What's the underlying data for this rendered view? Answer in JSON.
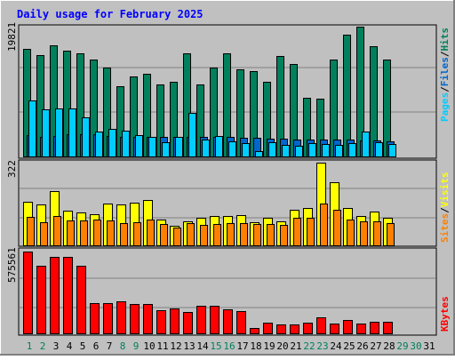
{
  "chart_data": {
    "type": "bar",
    "title": "Daily usage for February 2025",
    "categories": [
      "1",
      "2",
      "3",
      "4",
      "5",
      "6",
      "7",
      "8",
      "9",
      "10",
      "11",
      "12",
      "13",
      "14",
      "15",
      "16",
      "17",
      "18",
      "19",
      "20",
      "21",
      "22",
      "23",
      "24",
      "25",
      "26",
      "27",
      "28",
      "29",
      "30",
      "31"
    ],
    "weekend_days": [
      "1",
      "2",
      "8",
      "9",
      "15",
      "16",
      "22",
      "23",
      "29",
      "30"
    ],
    "panels": [
      {
        "id": "hits_files_pages",
        "ymax_label": "19821",
        "ylim": [
          0,
          19821
        ],
        "grid": true,
        "side_label": [
          {
            "text": "Pages",
            "color": "#00CCFF"
          },
          {
            "text": "/",
            "color": "#000000"
          },
          {
            "text": "Files",
            "color": "#0066CC"
          },
          {
            "text": "/",
            "color": "#000000"
          },
          {
            "text": "Hits",
            "color": "#00805C"
          }
        ],
        "series": [
          {
            "name": "Hits",
            "color": "#00805C",
            "values": [
              16200,
              15300,
              16700,
              15900,
              15600,
              14600,
              13400,
              10600,
              12000,
              12500,
              10900,
              11300,
              15500,
              10800,
              13400,
              15600,
              13100,
              12800,
              11300,
              15100,
              13900,
              8800,
              8700,
              14600,
              18400,
              19500,
              16600,
              14600,
              0,
              0,
              0
            ]
          },
          {
            "name": "Files",
            "color": "#0066CC",
            "values": [
              3200,
              3000,
              3100,
              3300,
              3300,
              3300,
              3100,
              3000,
              3000,
              3000,
              3000,
              3000,
              3000,
              3000,
              2900,
              2900,
              2800,
              2800,
              2700,
              2700,
              2600,
              2600,
              2600,
              2500,
              2500,
              2400,
              2400,
              2300,
              0,
              0,
              0
            ]
          },
          {
            "name": "Pages",
            "color": "#00CCFF",
            "values": [
              8500,
              7100,
              7200,
              7200,
              5900,
              3800,
              4200,
              3900,
              3200,
              2900,
              2100,
              3000,
              6600,
              2600,
              3100,
              2300,
              2000,
              800,
              2100,
              1700,
              1600,
              2000,
              1900,
              1800,
              2000,
              3800,
              2100,
              1900,
              0,
              0,
              0
            ]
          }
        ]
      },
      {
        "id": "visits_sites",
        "ymax_label": "322",
        "ylim": [
          0,
          322
        ],
        "grid": true,
        "side_label": [
          {
            "text": "Sites",
            "color": "#FF8000"
          },
          {
            "text": "/",
            "color": "#000000"
          },
          {
            "text": "Visits",
            "color": "#FFFF00"
          }
        ],
        "series": [
          {
            "name": "Visits",
            "color": "#FFFF00",
            "values": [
              170,
              158,
              212,
              135,
              128,
              121,
              164,
              159,
              165,
              177,
              99,
              76,
              94,
              106,
              114,
              114,
              116,
              89,
              107,
              95,
              137,
              144,
              322,
              246,
              144,
              115,
              131,
              108,
              0,
              0,
              0
            ]
          },
          {
            "name": "Sites",
            "color": "#FF8000",
            "values": [
              110,
              89,
              114,
              97,
              97,
              100,
              97,
              86,
              89,
              101,
              83,
              68,
              86,
              80,
              83,
              85,
              87,
              84,
              84,
              79,
              108,
              107,
              163,
              140,
              101,
              93,
              94,
              87,
              0,
              0,
              0
            ]
          }
        ]
      },
      {
        "id": "kbytes",
        "ymax_label": "575561",
        "ylim": [
          0,
          575561
        ],
        "grid": true,
        "side_label": [
          {
            "text": "KBytes",
            "color": "#FF0000"
          }
        ],
        "series": [
          {
            "name": "KBytes",
            "color": "#FF0000",
            "values": [
              575561,
              475000,
              540000,
              540000,
              475000,
              212000,
              212000,
              225000,
              209000,
              205000,
              161000,
              173000,
              150000,
              193000,
              194000,
              166000,
              159000,
              40000,
              78000,
              64000,
              64000,
              75000,
              112000,
              68000,
              93000,
              68000,
              81000,
              82000,
              0,
              0,
              0
            ]
          }
        ]
      }
    ]
  }
}
